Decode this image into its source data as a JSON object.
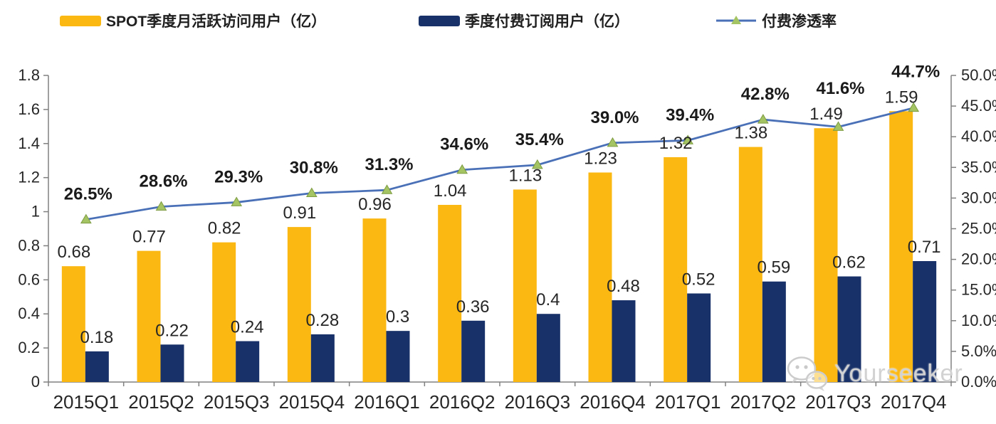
{
  "legend": [
    {
      "label": "SPOT季度月活跃访问用户（亿）",
      "swatch": "bar",
      "color": "#FBB813"
    },
    {
      "label": "季度付费订阅用户（亿）",
      "swatch": "bar",
      "color": "#183168"
    },
    {
      "label": "付费渗透率",
      "swatch": "line",
      "color": "#4A71B7",
      "marker_color": "#A4C463"
    }
  ],
  "chart_data": {
    "type": "bar",
    "categories": [
      "2015Q1",
      "2015Q2",
      "2015Q3",
      "2015Q4",
      "2016Q1",
      "2016Q2",
      "2016Q3",
      "2016Q4",
      "2017Q1",
      "2017Q2",
      "2017Q3",
      "2017Q4"
    ],
    "series": [
      {
        "name": "SPOT季度月活跃访问用户（亿）",
        "type": "bar",
        "axis": "left",
        "color": "#FBB813",
        "values": [
          0.68,
          0.77,
          0.82,
          0.91,
          0.96,
          1.04,
          1.13,
          1.23,
          1.32,
          1.38,
          1.49,
          1.59
        ],
        "value_labels": [
          "0.68",
          "0.77",
          "0.82",
          "0.91",
          "0.96",
          "1.04",
          "1.13",
          "1.23",
          "1.32",
          "1.38",
          "1.49",
          "1.59"
        ]
      },
      {
        "name": "季度付费订阅用户（亿）",
        "type": "bar",
        "axis": "left",
        "color": "#183168",
        "values": [
          0.18,
          0.22,
          0.24,
          0.28,
          0.3,
          0.36,
          0.4,
          0.48,
          0.52,
          0.59,
          0.62,
          0.71
        ],
        "value_labels": [
          "0.18",
          "0.22",
          "0.24",
          "0.28",
          "0.3",
          "0.36",
          "0.4",
          "0.48",
          "0.52",
          "0.59",
          "0.62",
          "0.71"
        ]
      },
      {
        "name": "付费渗透率",
        "type": "line",
        "axis": "right",
        "color": "#4A71B7",
        "marker_color": "#A4C463",
        "marker_stroke": "#7E9C42",
        "values": [
          26.5,
          28.6,
          29.3,
          30.8,
          31.3,
          34.6,
          35.4,
          39.0,
          39.4,
          42.8,
          41.6,
          44.7
        ],
        "value_labels": [
          "26.5%",
          "28.6%",
          "29.3%",
          "30.8%",
          "31.3%",
          "34.6%",
          "35.4%",
          "39.0%",
          "39.4%",
          "42.8%",
          "41.6%",
          "44.7%"
        ]
      }
    ],
    "left_axis": {
      "range": [
        0,
        1.8
      ],
      "ticks": [
        "1.8",
        "1.6",
        "1.4",
        "1.2",
        "1",
        "0.8",
        "0.6",
        "0.4",
        "0.2",
        "0"
      ]
    },
    "right_axis": {
      "range": [
        0,
        50
      ],
      "ticks": [
        "50.0%",
        "45.0%",
        "40.0%",
        "35.0%",
        "30.0%",
        "25.0%",
        "20.0%",
        "15.0%",
        "10.0%",
        "5.0%",
        "0.0%"
      ]
    },
    "grid": false,
    "legend_position": "top"
  },
  "watermark": {
    "text": "Yourseeker",
    "icon": "wechat-icon"
  }
}
